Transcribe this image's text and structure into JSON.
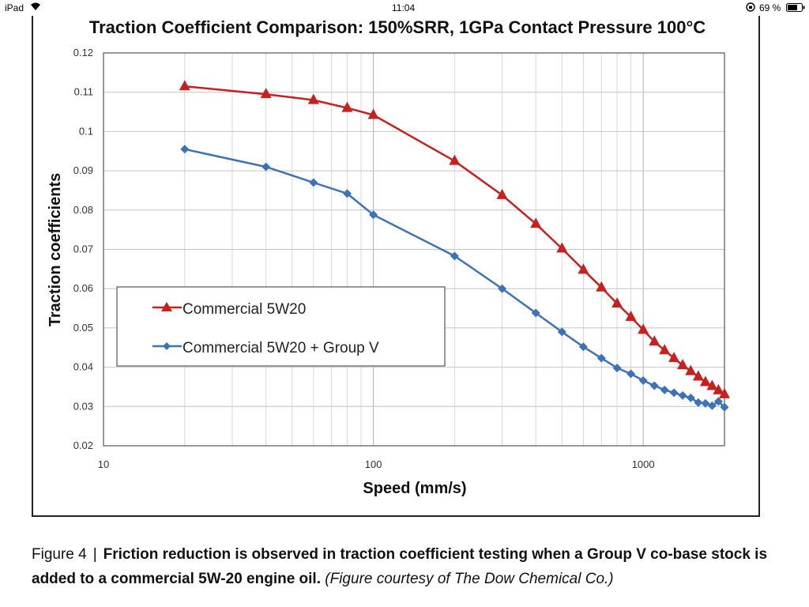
{
  "status_bar": {
    "device": "iPad",
    "time": "11:04",
    "battery": "69 %",
    "icons": [
      "wifi-icon",
      "orientation-lock-icon",
      "battery-icon"
    ]
  },
  "chart_data": {
    "type": "line",
    "title": "Traction Coefficient Comparison: 150%SRR, 1GPa Contact Pressure 100°C",
    "xlabel": "Speed (mm/s)",
    "ylabel": "Traction coefficients",
    "x_scale": "log",
    "xlim": [
      10,
      2000
    ],
    "ylim": [
      0.02,
      0.12
    ],
    "x_ticks": [
      "10",
      "100",
      "1000"
    ],
    "y_ticks": [
      "0.02",
      "0.03",
      "0.04",
      "0.05",
      "0.06",
      "0.07",
      "0.08",
      "0.09",
      "0.1",
      "0.11",
      "0.12"
    ],
    "grid": true,
    "legend_placement": "left-center",
    "series": [
      {
        "name": "Commercial 5W20",
        "color": "#c8201e",
        "marker": "triangle",
        "points": [
          [
            20,
            0.1115
          ],
          [
            40,
            0.1095
          ],
          [
            60,
            0.108
          ],
          [
            80,
            0.106
          ],
          [
            100,
            0.1042
          ],
          [
            200,
            0.0925
          ],
          [
            300,
            0.0838
          ],
          [
            400,
            0.0765
          ],
          [
            500,
            0.0702
          ],
          [
            600,
            0.0648
          ],
          [
            700,
            0.0603
          ],
          [
            800,
            0.0562
          ],
          [
            900,
            0.0528
          ],
          [
            1000,
            0.0495
          ],
          [
            1100,
            0.0465
          ],
          [
            1200,
            0.0443
          ],
          [
            1300,
            0.0423
          ],
          [
            1400,
            0.0405
          ],
          [
            1500,
            0.039
          ],
          [
            1600,
            0.0376
          ],
          [
            1700,
            0.0362
          ],
          [
            1800,
            0.0352
          ],
          [
            1900,
            0.0341
          ],
          [
            2000,
            0.0331
          ]
        ]
      },
      {
        "name": "Commercial 5W20 + Group V",
        "color": "#3d72b8",
        "marker": "diamond",
        "points": [
          [
            20,
            0.0955
          ],
          [
            40,
            0.091
          ],
          [
            60,
            0.087
          ],
          [
            80,
            0.0842
          ],
          [
            100,
            0.0788
          ],
          [
            200,
            0.0683
          ],
          [
            300,
            0.06
          ],
          [
            400,
            0.0538
          ],
          [
            500,
            0.049
          ],
          [
            600,
            0.0452
          ],
          [
            700,
            0.0423
          ],
          [
            800,
            0.0398
          ],
          [
            900,
            0.0383
          ],
          [
            1000,
            0.0366
          ],
          [
            1100,
            0.0353
          ],
          [
            1200,
            0.0342
          ],
          [
            1300,
            0.0335
          ],
          [
            1400,
            0.0328
          ],
          [
            1500,
            0.0322
          ],
          [
            1600,
            0.031
          ],
          [
            1700,
            0.0308
          ],
          [
            1800,
            0.0302
          ],
          [
            1900,
            0.0313
          ],
          [
            2000,
            0.0298
          ]
        ]
      }
    ]
  },
  "caption": {
    "label": "Figure 4",
    "separator": "|",
    "bold_text": "Friction reduction is observed in traction coefficient testing when a Group V co-base stock is added to a commercial 5W-20 engine oil.",
    "credit": "(Figure courtesy of The Dow Chemical Co.)"
  }
}
